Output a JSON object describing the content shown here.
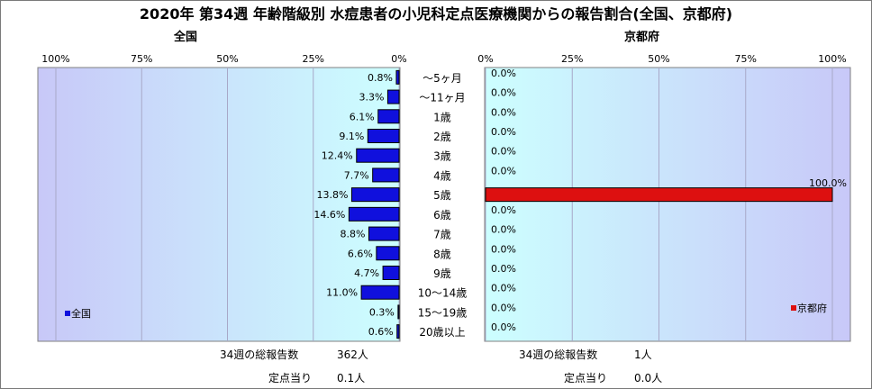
{
  "title": "2020年 第34週 年齢階級別 水痘患者の小児科定点医療機関からの報告割合(全国、京都府)",
  "chart_data": [
    {
      "type": "bar",
      "orientation": "horizontal",
      "direction": "right-to-left",
      "title": "全国",
      "categories": [
        "～5ヶ月",
        "～11ヶ月",
        "1歳",
        "2歳",
        "3歳",
        "4歳",
        "5歳",
        "6歳",
        "7歳",
        "8歳",
        "9歳",
        "10～14歳",
        "15～19歳",
        "20歳以上"
      ],
      "series": [
        {
          "name": "全国",
          "color": "#1010dd",
          "values": [
            0.8,
            3.3,
            6.1,
            9.1,
            12.4,
            7.7,
            13.8,
            14.6,
            8.8,
            6.6,
            4.7,
            11.0,
            0.3,
            0.6
          ]
        }
      ],
      "value_labels": [
        "0.8%",
        "3.3%",
        "6.1%",
        "9.1%",
        "12.4%",
        "7.7%",
        "13.8%",
        "14.6%",
        "8.8%",
        "6.6%",
        "4.7%",
        "11.0%",
        "0.3%",
        "0.6%"
      ],
      "xlim": [
        0,
        100
      ],
      "ticks": [
        "100%",
        "75%",
        "50%",
        "25%",
        "0%"
      ],
      "legend_position": "bottom-left",
      "grid": true
    },
    {
      "type": "bar",
      "orientation": "horizontal",
      "direction": "left-to-right",
      "title": "京都府",
      "categories": [
        "～5ヶ月",
        "～11ヶ月",
        "1歳",
        "2歳",
        "3歳",
        "4歳",
        "5歳",
        "6歳",
        "7歳",
        "8歳",
        "9歳",
        "10～14歳",
        "15～19歳",
        "20歳以上"
      ],
      "series": [
        {
          "name": "京都府",
          "color": "#dd1010",
          "values": [
            0.0,
            0.0,
            0.0,
            0.0,
            0.0,
            0.0,
            100.0,
            0.0,
            0.0,
            0.0,
            0.0,
            0.0,
            0.0,
            0.0
          ]
        }
      ],
      "value_labels": [
        "0.0%",
        "0.0%",
        "0.0%",
        "0.0%",
        "0.0%",
        "0.0%",
        "100.0%",
        "0.0%",
        "0.0%",
        "0.0%",
        "0.0%",
        "0.0%",
        "0.0%",
        "0.0%"
      ],
      "xlim": [
        0,
        100
      ],
      "ticks": [
        "0%",
        "25%",
        "50%",
        "75%",
        "100%"
      ],
      "legend_position": "bottom-right",
      "grid": true
    }
  ],
  "footer": {
    "national": {
      "total_label": "34週の総報告数",
      "total_value": "362人",
      "per_label": "定点当り",
      "per_value": "0.1人"
    },
    "kyoto": {
      "total_label": "34週の総報告数",
      "total_value": "1人",
      "per_label": "定点当り",
      "per_value": "0.0人"
    }
  }
}
